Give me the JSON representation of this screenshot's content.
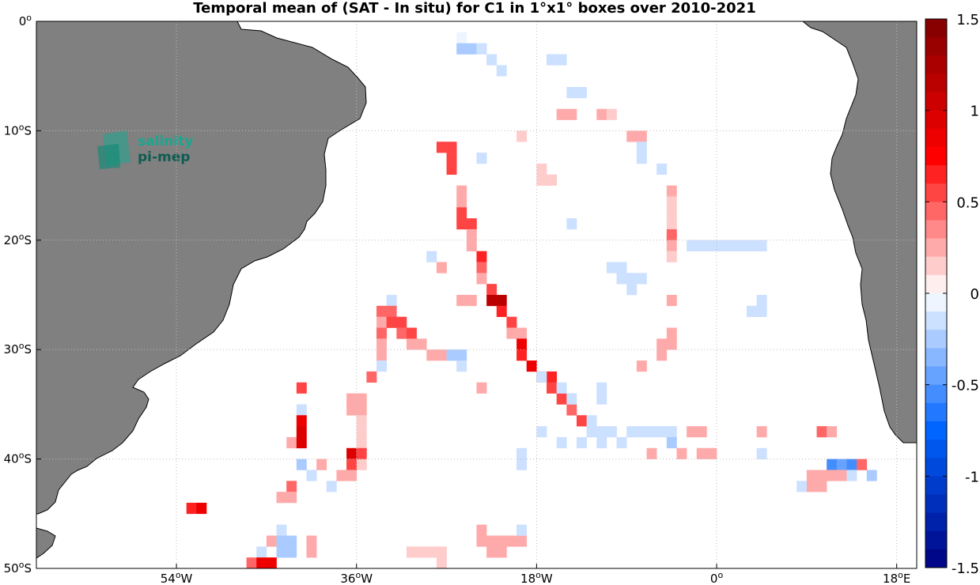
{
  "title": "Temporal mean of (SAT - In situ) for C1 in 1°x1° boxes over 2010-2021",
  "logo": {
    "line1": "salinity",
    "line2": "pi-mep",
    "color": "#1aa68f"
  },
  "colors": {
    "land": "#808080",
    "ocean": "#ffffff",
    "coast": "#000000",
    "grid": "#bdbdbd"
  },
  "map": {
    "lon_range": [
      -68,
      20
    ],
    "lat_range": [
      -50,
      0
    ],
    "x_ticks": [
      {
        "lon": -54,
        "deg": "54",
        "suffix": "W"
      },
      {
        "lon": -36,
        "deg": "36",
        "suffix": "W"
      },
      {
        "lon": -18,
        "deg": "18",
        "suffix": "W"
      },
      {
        "lon": 0,
        "deg": "0",
        "suffix": ""
      },
      {
        "lon": 18,
        "deg": "18",
        "suffix": "E"
      }
    ],
    "y_ticks": [
      {
        "lat": 0,
        "deg": "0",
        "suffix": ""
      },
      {
        "lat": -10,
        "deg": "10",
        "suffix": "S"
      },
      {
        "lat": -20,
        "deg": "20",
        "suffix": "S"
      },
      {
        "lat": -30,
        "deg": "30",
        "suffix": "S"
      },
      {
        "lat": -40,
        "deg": "40",
        "suffix": "S"
      },
      {
        "lat": -50,
        "deg": "50",
        "suffix": "S"
      }
    ]
  },
  "colorbar": {
    "range": [
      -1.5,
      1.5
    ],
    "step": 0.1,
    "tick_labels": [
      {
        "v": 1.5,
        "label": "1.5"
      },
      {
        "v": 1,
        "label": "1"
      },
      {
        "v": 0.5,
        "label": "0.5"
      },
      {
        "v": 0,
        "label": "0"
      },
      {
        "v": -0.5,
        "label": "-0.5"
      },
      {
        "v": -1,
        "label": "-1"
      },
      {
        "v": -1.5,
        "label": "-1.5"
      }
    ]
  },
  "cells": [
    [
      -25.5,
      -1.5,
      -0.05
    ],
    [
      -25.5,
      -2.5,
      -0.3
    ],
    [
      -24.5,
      -2.5,
      -0.3
    ],
    [
      -23.5,
      -2.5,
      -0.1
    ],
    [
      -22.5,
      -3.5,
      -0.1
    ],
    [
      -21.5,
      -4.5,
      -0.1
    ],
    [
      -16.5,
      -3.5,
      -0.1
    ],
    [
      -15.5,
      -3.5,
      -0.1
    ],
    [
      -14.5,
      -6.5,
      -0.1
    ],
    [
      -13.5,
      -6.5,
      -0.1
    ],
    [
      -15.5,
      -8.5,
      0.2
    ],
    [
      -14.5,
      -8.5,
      0.2
    ],
    [
      -11.5,
      -8.5,
      0.3
    ],
    [
      -10.5,
      -8.5,
      0.15
    ],
    [
      -19.5,
      -10.5,
      0.15
    ],
    [
      -8.5,
      -10.5,
      0.25
    ],
    [
      -7.5,
      -10.5,
      0.25
    ],
    [
      -7.5,
      -11.5,
      -0.1
    ],
    [
      -7.5,
      -12.5,
      -0.1
    ],
    [
      -27.5,
      -11.5,
      0.6
    ],
    [
      -26.5,
      -11.5,
      0.6
    ],
    [
      -26.5,
      -12.5,
      0.5
    ],
    [
      -26.5,
      -13.5,
      0.5
    ],
    [
      -23.5,
      -12.5,
      -0.1
    ],
    [
      -17.5,
      -13.5,
      0.15
    ],
    [
      -17.5,
      -14.5,
      0.15
    ],
    [
      -16.5,
      -14.5,
      0.15
    ],
    [
      -5.5,
      -13.5,
      -0.1
    ],
    [
      -25.5,
      -15.5,
      0.3
    ],
    [
      -25.5,
      -16.5,
      0.2
    ],
    [
      -25.5,
      -17.5,
      0.6
    ],
    [
      -25.5,
      -18.5,
      0.6
    ],
    [
      -24.5,
      -18.5,
      0.6
    ],
    [
      -24.5,
      -19.5,
      0.3
    ],
    [
      -24.5,
      -20.5,
      0.3
    ],
    [
      -23.5,
      -21.5,
      0.7
    ],
    [
      -23.5,
      -22.5,
      0.4
    ],
    [
      -23.5,
      -23.5,
      0.3
    ],
    [
      -22.5,
      -24.5,
      0.6
    ],
    [
      -22.5,
      -25.5,
      1.1
    ],
    [
      -21.5,
      -25.5,
      1.1
    ],
    [
      -21.5,
      -26.5,
      0.7
    ],
    [
      -20.5,
      -27.5,
      0.5
    ],
    [
      -20.5,
      -28.5,
      0.3
    ],
    [
      -19.5,
      -28.5,
      0.2
    ],
    [
      -19.5,
      -29.5,
      0.8
    ],
    [
      -19.5,
      -30.5,
      0.7
    ],
    [
      -18.5,
      -31.5,
      0.8
    ],
    [
      -17.5,
      -32.5,
      0.8
    ],
    [
      -16.5,
      -32.5,
      0.7
    ],
    [
      -16.5,
      -33.5,
      0.5
    ],
    [
      -15.5,
      -34.5,
      0.6
    ],
    [
      -14.5,
      -35.5,
      0.4
    ],
    [
      -13.5,
      -36.5,
      0.5
    ],
    [
      -12.5,
      -36.5,
      -0.1
    ],
    [
      -4.5,
      -15.5,
      0.3
    ],
    [
      -4.5,
      -16.5,
      0.15
    ],
    [
      -4.5,
      -17.5,
      0.15
    ],
    [
      -4.5,
      -18.5,
      0.15
    ],
    [
      -4.5,
      -19.5,
      0.4
    ],
    [
      -4.5,
      -20.5,
      0.3
    ],
    [
      -4.5,
      -21.5,
      0.15
    ],
    [
      -14.5,
      -18.5,
      -0.1
    ],
    [
      -2.5,
      -20.5,
      -0.1
    ],
    [
      -1.5,
      -20.5,
      -0.1
    ],
    [
      -0.5,
      -20.5,
      -0.1
    ],
    [
      0.5,
      -20.5,
      -0.1
    ],
    [
      1.5,
      -20.5,
      -0.1
    ],
    [
      2.5,
      -20.5,
      -0.1
    ],
    [
      3.5,
      -20.5,
      -0.1
    ],
    [
      4.5,
      -20.5,
      -0.1
    ],
    [
      -28.5,
      -21.5,
      -0.1
    ],
    [
      -27.5,
      -22.5,
      0.3
    ],
    [
      -10.5,
      -22.5,
      -0.1
    ],
    [
      -9.5,
      -22.5,
      -0.1
    ],
    [
      -9.5,
      -23.5,
      -0.1
    ],
    [
      -8.5,
      -23.5,
      -0.1
    ],
    [
      -7.5,
      -23.5,
      -0.1
    ],
    [
      -8.5,
      -24.5,
      -0.1
    ],
    [
      -25.5,
      -25.5,
      0.2
    ],
    [
      -24.5,
      -25.5,
      0.2
    ],
    [
      -4.5,
      -25.5,
      0.2
    ],
    [
      -32.5,
      -25.5,
      -0.1
    ],
    [
      -33.5,
      -26.5,
      0.4
    ],
    [
      -32.5,
      -26.5,
      0.4
    ],
    [
      -33.5,
      -27.5,
      0.3
    ],
    [
      -32.5,
      -27.5,
      0.6
    ],
    [
      -31.5,
      -27.5,
      0.6
    ],
    [
      -33.5,
      -28.5,
      0.4
    ],
    [
      -31.5,
      -28.5,
      0.4
    ],
    [
      -30.5,
      -28.5,
      0.5
    ],
    [
      -33.5,
      -29.5,
      0.2
    ],
    [
      -30.5,
      -29.5,
      0.3
    ],
    [
      -29.5,
      -29.5,
      0.2
    ],
    [
      -33.5,
      -30.5,
      0.3
    ],
    [
      -28.5,
      -30.5,
      0.2
    ],
    [
      -27.5,
      -30.5,
      0.2
    ],
    [
      -26.5,
      -30.5,
      -0.2
    ],
    [
      -25.5,
      -30.5,
      -0.2
    ],
    [
      -33.5,
      -31.5,
      -0.1
    ],
    [
      -25.5,
      -31.5,
      -0.1
    ],
    [
      -34.5,
      -32.5,
      0.4
    ],
    [
      3.5,
      -26.5,
      -0.1
    ],
    [
      4.5,
      -26.5,
      -0.1
    ],
    [
      4.5,
      -25.5,
      -0.1
    ],
    [
      -4.5,
      -28.5,
      0.2
    ],
    [
      -4.5,
      -29.5,
      0.2
    ],
    [
      -5.5,
      -29.5,
      0.3
    ],
    [
      -5.5,
      -30.5,
      0.3
    ],
    [
      -7.5,
      -31.5,
      0.2
    ],
    [
      -17.5,
      -32.5,
      -0.1
    ],
    [
      -15.5,
      -33.5,
      -0.1
    ],
    [
      -14.5,
      -34.5,
      -0.1
    ],
    [
      -11.5,
      -33.5,
      -0.1
    ],
    [
      -11.5,
      -34.5,
      -0.1
    ],
    [
      -23.5,
      -33.5,
      0.3
    ],
    [
      -41.5,
      -33.5,
      0.6
    ],
    [
      -41.5,
      -35.5,
      -0.1
    ],
    [
      -41.5,
      -36.5,
      0.8
    ],
    [
      -41.5,
      -37.5,
      0.9
    ],
    [
      -42.5,
      -38.5,
      0.3
    ],
    [
      -41.5,
      -38.5,
      0.9
    ],
    [
      -36.5,
      -34.5,
      0.2
    ],
    [
      -35.5,
      -34.5,
      0.2
    ],
    [
      -36.5,
      -35.5,
      0.2
    ],
    [
      -35.5,
      -35.5,
      0.2
    ],
    [
      -35.5,
      -36.5,
      0.15
    ],
    [
      -35.5,
      -37.5,
      0.15
    ],
    [
      -35.5,
      -38.5,
      0.15
    ],
    [
      -35.5,
      -39.5,
      0.15
    ],
    [
      -35.5,
      -40.5,
      0.15
    ],
    [
      -36.5,
      -39.5,
      0.9
    ],
    [
      -35.5,
      -39.5,
      0.5
    ],
    [
      -36.5,
      -40.5,
      0.6
    ],
    [
      -36.5,
      -41.5,
      0.3
    ],
    [
      -41.5,
      -40.5,
      -0.2
    ],
    [
      -40.5,
      -41.5,
      -0.1
    ],
    [
      -39.5,
      -40.5,
      0.2
    ],
    [
      -37.5,
      -41.5,
      0.2
    ],
    [
      -38.5,
      -42.5,
      -0.1
    ],
    [
      -42.5,
      -42.5,
      0.4
    ],
    [
      -42.5,
      -43.5,
      0.2
    ],
    [
      -43.5,
      -43.5,
      0.3
    ],
    [
      -52.5,
      -44.5,
      0.7
    ],
    [
      -51.5,
      -44.5,
      0.8
    ],
    [
      -17.5,
      -37.5,
      -0.1
    ],
    [
      -15.5,
      -38.5,
      -0.1
    ],
    [
      -13.5,
      -38.5,
      -0.1
    ],
    [
      -12.5,
      -37.5,
      -0.1
    ],
    [
      -11.5,
      -37.5,
      -0.1
    ],
    [
      -10.5,
      -37.5,
      -0.1
    ],
    [
      -11.5,
      -38.5,
      -0.1
    ],
    [
      -9.5,
      -38.5,
      -0.1
    ],
    [
      -8.5,
      -37.5,
      -0.1
    ],
    [
      -7.5,
      -37.5,
      -0.1
    ],
    [
      -6.5,
      -37.5,
      -0.1
    ],
    [
      -5.5,
      -37.5,
      -0.1
    ],
    [
      -4.5,
      -37.5,
      -0.1
    ],
    [
      -4.5,
      -38.5,
      -0.2
    ],
    [
      -3.5,
      -39.5,
      0.3
    ],
    [
      -6.5,
      -39.5,
      0.2
    ],
    [
      -2.5,
      -37.5,
      0.2
    ],
    [
      -1.5,
      -37.5,
      0.2
    ],
    [
      -0.5,
      -39.5,
      0.2
    ],
    [
      -1.5,
      -39.5,
      0.2
    ],
    [
      4.5,
      -37.5,
      0.2
    ],
    [
      4.5,
      -39.5,
      -0.1
    ],
    [
      -19.5,
      -39.5,
      -0.1
    ],
    [
      -19.5,
      -40.5,
      -0.1
    ],
    [
      10.5,
      -37.5,
      0.4
    ],
    [
      11.5,
      -37.5,
      0.2
    ],
    [
      11.5,
      -40.5,
      -0.5
    ],
    [
      12.5,
      -40.5,
      -0.4
    ],
    [
      13.5,
      -40.5,
      -0.6
    ],
    [
      14.5,
      -40.5,
      0.4
    ],
    [
      11.5,
      -41.5,
      0.2
    ],
    [
      10.5,
      -41.5,
      0.2
    ],
    [
      9.5,
      -41.5,
      0.2
    ],
    [
      12.5,
      -41.5,
      0.3
    ],
    [
      13.5,
      -41.5,
      -0.1
    ],
    [
      15.5,
      -41.5,
      -0.2
    ],
    [
      8.5,
      -42.5,
      -0.1
    ],
    [
      9.5,
      -42.5,
      0.2
    ],
    [
      10.5,
      -42.5,
      0.2
    ],
    [
      -43.5,
      -46.5,
      -0.1
    ],
    [
      -44.5,
      -47.5,
      0.2
    ],
    [
      -43.5,
      -47.5,
      -0.2
    ],
    [
      -42.5,
      -47.5,
      -0.3
    ],
    [
      -42.5,
      -48.5,
      -0.3
    ],
    [
      -43.5,
      -48.5,
      -0.3
    ],
    [
      -45.5,
      -48.5,
      -0.1
    ],
    [
      -46.5,
      -49.5,
      0.4
    ],
    [
      -45.5,
      -49.5,
      0.8
    ],
    [
      -44.5,
      -49.5,
      0.8
    ],
    [
      -40.5,
      -47.5,
      0.2
    ],
    [
      -40.5,
      -48.5,
      0.2
    ],
    [
      -23.5,
      -46.5,
      0.2
    ],
    [
      -23.5,
      -47.5,
      0.2
    ],
    [
      -22.5,
      -47.5,
      0.2
    ],
    [
      -21.5,
      -47.5,
      0.2
    ],
    [
      -20.5,
      -47.5,
      0.2
    ],
    [
      -19.5,
      -47.5,
      0.2
    ],
    [
      -22.5,
      -48.5,
      0.2
    ],
    [
      -21.5,
      -48.5,
      0.2
    ],
    [
      -19.5,
      -46.5,
      -0.1
    ],
    [
      -30.5,
      -48.5,
      0.15
    ],
    [
      -29.5,
      -48.5,
      0.15
    ],
    [
      -28.5,
      -48.5,
      0.15
    ],
    [
      -27.5,
      -48.5,
      0.15
    ],
    [
      -27.5,
      -49.5,
      0.15
    ]
  ]
}
